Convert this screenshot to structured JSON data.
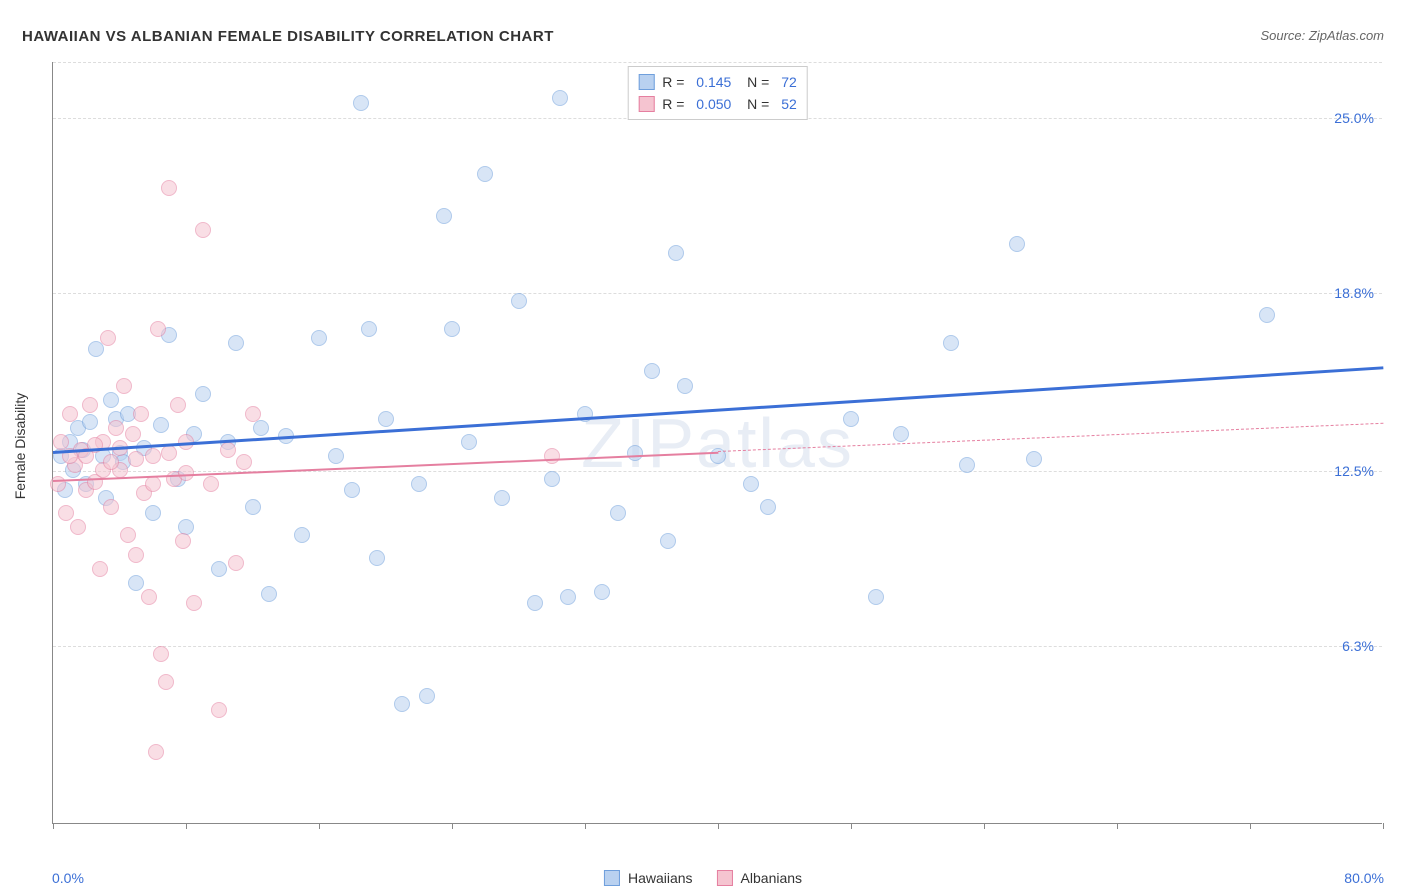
{
  "title": "HAWAIIAN VS ALBANIAN FEMALE DISABILITY CORRELATION CHART",
  "source_label": "Source: ZipAtlas.com",
  "watermark": "ZIPatlas",
  "ylabel": "Female Disability",
  "chart": {
    "type": "scatter",
    "xlim": [
      0,
      80
    ],
    "ylim": [
      0,
      27
    ],
    "x_axis_left_label": "0.0%",
    "x_axis_right_label": "80.0%",
    "y_ticks": [
      {
        "value": 6.3,
        "label": "6.3%"
      },
      {
        "value": 12.5,
        "label": "12.5%"
      },
      {
        "value": 18.8,
        "label": "18.8%"
      },
      {
        "value": 25.0,
        "label": "25.0%"
      }
    ],
    "x_tick_values": [
      0,
      8,
      16,
      24,
      32,
      40,
      48,
      56,
      64,
      72,
      80
    ],
    "background_color": "#ffffff",
    "grid_color": "#dddddd",
    "axis_color": "#888888",
    "marker_radius": 8,
    "marker_border_width": 1.5,
    "series": [
      {
        "name": "Hawaiians",
        "fill_color": "#b9d1f0",
        "border_color": "#6f9fdc",
        "fill_opacity": 0.55,
        "R": "0.145",
        "N": "72",
        "trend": {
          "x1": 0,
          "y1": 13.2,
          "x2": 80,
          "y2": 16.2,
          "color": "#3b6fd6",
          "width": 2.5,
          "dash": false
        },
        "points": [
          [
            0.5,
            13.0
          ],
          [
            0.7,
            11.8
          ],
          [
            1.0,
            13.5
          ],
          [
            1.2,
            12.5
          ],
          [
            1.5,
            14.0
          ],
          [
            1.8,
            13.2
          ],
          [
            2.0,
            12.0
          ],
          [
            2.2,
            14.2
          ],
          [
            2.6,
            16.8
          ],
          [
            3.0,
            13.0
          ],
          [
            3.2,
            11.5
          ],
          [
            3.5,
            15.0
          ],
          [
            3.8,
            14.3
          ],
          [
            4.0,
            13.1
          ],
          [
            4.2,
            12.8
          ],
          [
            4.5,
            14.5
          ],
          [
            5.0,
            8.5
          ],
          [
            5.5,
            13.3
          ],
          [
            6.0,
            11.0
          ],
          [
            6.5,
            14.1
          ],
          [
            7.0,
            17.3
          ],
          [
            7.5,
            12.2
          ],
          [
            8.0,
            10.5
          ],
          [
            8.5,
            13.8
          ],
          [
            9.0,
            15.2
          ],
          [
            10.0,
            9.0
          ],
          [
            10.5,
            13.5
          ],
          [
            11.0,
            17.0
          ],
          [
            12.0,
            11.2
          ],
          [
            12.5,
            14.0
          ],
          [
            13.0,
            8.1
          ],
          [
            14.0,
            13.7
          ],
          [
            15.0,
            10.2
          ],
          [
            16.0,
            17.2
          ],
          [
            17.0,
            13.0
          ],
          [
            18.0,
            11.8
          ],
          [
            18.5,
            25.5
          ],
          [
            19.0,
            17.5
          ],
          [
            19.5,
            9.4
          ],
          [
            20.0,
            14.3
          ],
          [
            21.0,
            4.2
          ],
          [
            22.0,
            12.0
          ],
          [
            22.5,
            4.5
          ],
          [
            23.5,
            21.5
          ],
          [
            24.0,
            17.5
          ],
          [
            25.0,
            13.5
          ],
          [
            26.0,
            23.0
          ],
          [
            27.0,
            11.5
          ],
          [
            28.0,
            18.5
          ],
          [
            29.0,
            7.8
          ],
          [
            30.0,
            12.2
          ],
          [
            30.5,
            25.7
          ],
          [
            31.0,
            8.0
          ],
          [
            32.0,
            14.5
          ],
          [
            33.0,
            8.2
          ],
          [
            34.0,
            11.0
          ],
          [
            35.0,
            13.1
          ],
          [
            36.0,
            16.0
          ],
          [
            37.0,
            10.0
          ],
          [
            37.5,
            20.2
          ],
          [
            38.0,
            15.5
          ],
          [
            40.0,
            13.0
          ],
          [
            42.0,
            12.0
          ],
          [
            43.0,
            11.2
          ],
          [
            48.0,
            14.3
          ],
          [
            49.5,
            8.0
          ],
          [
            51.0,
            13.8
          ],
          [
            54.0,
            17.0
          ],
          [
            55.0,
            12.7
          ],
          [
            58.0,
            20.5
          ],
          [
            59.0,
            12.9
          ],
          [
            73.0,
            18.0
          ]
        ]
      },
      {
        "name": "Albanians",
        "fill_color": "#f5c4d0",
        "border_color": "#e57fa0",
        "fill_opacity": 0.55,
        "R": "0.050",
        "N": "52",
        "trend": {
          "x1": 0,
          "y1": 12.2,
          "x2": 40,
          "y2": 13.2,
          "color": "#e57fa0",
          "width": 2,
          "dash": false
        },
        "trend_ext": {
          "x1": 40,
          "y1": 13.2,
          "x2": 80,
          "y2": 14.2,
          "color": "#e57fa0",
          "width": 1,
          "dash": true
        },
        "points": [
          [
            0.3,
            12.0
          ],
          [
            0.5,
            13.5
          ],
          [
            0.8,
            11.0
          ],
          [
            1.0,
            14.5
          ],
          [
            1.3,
            12.7
          ],
          [
            1.5,
            10.5
          ],
          [
            1.7,
            13.2
          ],
          [
            2.0,
            11.8
          ],
          [
            2.2,
            14.8
          ],
          [
            2.5,
            12.1
          ],
          [
            2.8,
            9.0
          ],
          [
            3.0,
            13.5
          ],
          [
            3.3,
            17.2
          ],
          [
            3.5,
            11.2
          ],
          [
            3.8,
            14.0
          ],
          [
            4.0,
            12.5
          ],
          [
            4.3,
            15.5
          ],
          [
            4.5,
            10.2
          ],
          [
            4.8,
            13.8
          ],
          [
            5.0,
            9.5
          ],
          [
            5.3,
            14.5
          ],
          [
            5.5,
            11.7
          ],
          [
            5.8,
            8.0
          ],
          [
            6.0,
            13.0
          ],
          [
            6.3,
            17.5
          ],
          [
            6.5,
            6.0
          ],
          [
            6.2,
            2.5
          ],
          [
            6.8,
            5.0
          ],
          [
            7.0,
            22.5
          ],
          [
            7.3,
            12.2
          ],
          [
            7.5,
            14.8
          ],
          [
            7.8,
            10.0
          ],
          [
            8.0,
            13.5
          ],
          [
            8.5,
            7.8
          ],
          [
            9.0,
            21.0
          ],
          [
            9.5,
            12.0
          ],
          [
            10.0,
            4.0
          ],
          [
            10.5,
            13.2
          ],
          [
            11.0,
            9.2
          ],
          [
            11.5,
            12.8
          ],
          [
            12.0,
            14.5
          ],
          [
            2.0,
            13.0
          ],
          [
            3.0,
            12.5
          ],
          [
            4.0,
            13.3
          ],
          [
            5.0,
            12.9
          ],
          [
            6.0,
            12.0
          ],
          [
            7.0,
            13.1
          ],
          [
            8.0,
            12.4
          ],
          [
            1.0,
            13.0
          ],
          [
            2.5,
            13.4
          ],
          [
            3.5,
            12.8
          ],
          [
            30.0,
            13.0
          ]
        ]
      }
    ]
  },
  "legend_top": {
    "rows": [
      {
        "swatch_fill": "#b9d1f0",
        "swatch_border": "#6f9fdc",
        "R_label": "R",
        "R_value": "0.145",
        "N_label": "N",
        "N_value": "72"
      },
      {
        "swatch_fill": "#f5c4d0",
        "swatch_border": "#e57fa0",
        "R_label": "R",
        "R_value": "0.050",
        "N_label": "N",
        "N_value": "52"
      }
    ],
    "value_color": "#3b6fd6",
    "label_color": "#333333"
  },
  "legend_bottom": {
    "items": [
      {
        "swatch_fill": "#b9d1f0",
        "swatch_border": "#6f9fdc",
        "label": "Hawaiians"
      },
      {
        "swatch_fill": "#f5c4d0",
        "swatch_border": "#e57fa0",
        "label": "Albanians"
      }
    ]
  }
}
